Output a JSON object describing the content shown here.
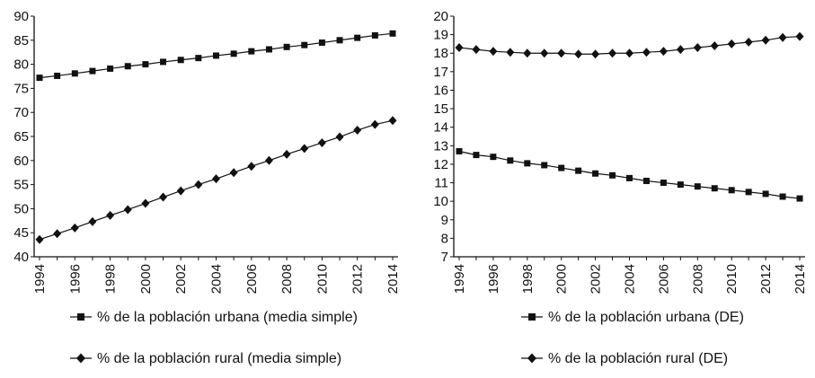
{
  "chart_data": [
    {
      "type": "line",
      "x": [
        1994,
        1995,
        1996,
        1997,
        1998,
        1999,
        2000,
        2001,
        2002,
        2003,
        2004,
        2005,
        2006,
        2007,
        2008,
        2009,
        2010,
        2011,
        2012,
        2013,
        2014
      ],
      "xticks": [
        "1994",
        "1996",
        "1998",
        "2000",
        "2002",
        "2004",
        "2006",
        "2008",
        "2010",
        "2012",
        "2014"
      ],
      "ylim": [
        40,
        90
      ],
      "yticks": [
        "40",
        "45",
        "50",
        "55",
        "60",
        "65",
        "70",
        "75",
        "80",
        "85",
        "90"
      ],
      "series": [
        {
          "name": "% de la población urbana (media simple)",
          "marker": "square",
          "values": [
            77.2,
            77.6,
            78.1,
            78.6,
            79.1,
            79.6,
            80.0,
            80.5,
            80.9,
            81.3,
            81.8,
            82.2,
            82.7,
            83.1,
            83.6,
            84.0,
            84.5,
            85.0,
            85.5,
            86.0,
            86.4
          ]
        },
        {
          "name": "% de la población rural (media simple)",
          "marker": "diamond",
          "values": [
            43.6,
            44.8,
            46.0,
            47.3,
            48.6,
            49.8,
            51.1,
            52.4,
            53.7,
            55.0,
            56.2,
            57.5,
            58.8,
            60.0,
            61.3,
            62.5,
            63.7,
            64.9,
            66.3,
            67.5,
            68.3
          ]
        }
      ]
    },
    {
      "type": "line",
      "x": [
        1994,
        1995,
        1996,
        1997,
        1998,
        1999,
        2000,
        2001,
        2002,
        2003,
        2004,
        2005,
        2006,
        2007,
        2008,
        2009,
        2010,
        2011,
        2012,
        2013,
        2014
      ],
      "xticks": [
        "1994",
        "1996",
        "1998",
        "2000",
        "2002",
        "2004",
        "2006",
        "2008",
        "2010",
        "2012",
        "2014"
      ],
      "ylim": [
        7,
        20
      ],
      "yticks": [
        "7",
        "8",
        "9",
        "10",
        "11",
        "12",
        "13",
        "14",
        "15",
        "16",
        "17",
        "18",
        "19",
        "20"
      ],
      "series": [
        {
          "name": "% de la población urbana (DE)",
          "marker": "square",
          "values": [
            12.7,
            12.5,
            12.4,
            12.2,
            12.05,
            11.95,
            11.8,
            11.65,
            11.5,
            11.4,
            11.25,
            11.1,
            11.0,
            10.9,
            10.8,
            10.7,
            10.6,
            10.5,
            10.4,
            10.25,
            10.15
          ]
        },
        {
          "name": "% de la población rural (DE)",
          "marker": "diamond",
          "values": [
            18.3,
            18.2,
            18.1,
            18.05,
            18.0,
            18.0,
            18.0,
            17.95,
            17.95,
            18.0,
            18.0,
            18.05,
            18.1,
            18.2,
            18.3,
            18.4,
            18.5,
            18.6,
            18.7,
            18.85,
            18.9
          ]
        }
      ]
    }
  ]
}
